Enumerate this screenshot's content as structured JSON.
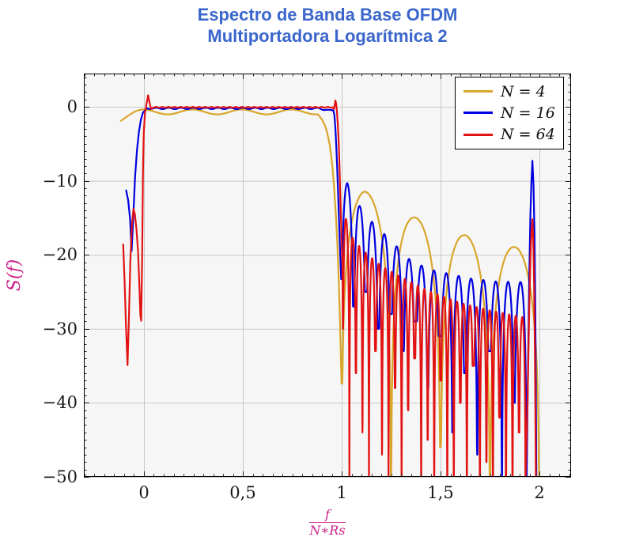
{
  "title": {
    "line1": "Espectro de Banda Base OFDM",
    "line2": "Multiportadora Logarítmica 2",
    "color": "#3A66CC"
  },
  "axes": {
    "x": {
      "label_numerator": "f",
      "label_denominator": "N∗Rs",
      "label_color": "#CC2288",
      "ticks": [
        "0",
        "0,5",
        "1",
        "1,5",
        "2"
      ],
      "tick_values": [
        0,
        0.5,
        1,
        1.5,
        2
      ],
      "range": [
        -0.304,
        2.16
      ],
      "minor_step": 0.05
    },
    "y": {
      "label": "S(f)",
      "label_color": "#CC2288",
      "ticks": [
        "0",
        "−10",
        "−20",
        "−30",
        "−40",
        "−50"
      ],
      "tick_values": [
        0,
        -10,
        -20,
        -30,
        -40,
        -50
      ],
      "range": [
        -50,
        4.49
      ],
      "minor_step": 1
    }
  },
  "legend": {
    "entries": [
      {
        "label": "N = 4",
        "color": "#D9A62B"
      },
      {
        "label": "N = 16",
        "color": "#0000E0"
      },
      {
        "label": "N = 64",
        "color": "#E31212"
      }
    ]
  },
  "chart_data": {
    "type": "line",
    "title": "Espectro de Banda Base OFDM Multiportadora Logarítmica 2",
    "xlabel": "f/(N∗Rs)",
    "ylabel": "S(f)",
    "xlim": [
      -0.304,
      2.16
    ],
    "ylim": [
      -50,
      4.49
    ],
    "grid": true,
    "legend_position": "top-right",
    "style": {
      "plot_bg": "#F6F6F6",
      "grid_color": "#C9C9C9",
      "frame_color": "#000000",
      "line_width": 2.2
    },
    "series": [
      {
        "name": "N = 4",
        "N": 4,
        "color": "#D9A62B",
        "description": "Flat passband 0 dB from x=0 to x=0.9 with ±0.35 dB ripple (period 0.25), steep roll-off, nulls at x=1.0,1.25,1.5,1.75,2.0, sidelobe peaks -11.4,-14.9,-17.3,-18.9 dB",
        "model": {
          "segments": [
            {
              "type": "flat",
              "x0": -0.116,
              "x1": 0.88,
              "step": 0.003,
              "base": -0.7,
              "amp": 0.33,
              "period": 0.25,
              "phase": -0.005,
              "quad_droop": {
                "x_ref": 0.0,
                "coef": 65
              }
            },
            {
              "type": "anchors",
              "step": 0.002,
              "points": [
                [
                  0.88,
                  -1.03
                ],
                [
                  0.9,
                  -1.7
                ],
                [
                  0.915,
                  -2.5
                ],
                [
                  0.925,
                  -3.3
                ],
                [
                  0.94,
                  -5.2
                ],
                [
                  0.952,
                  -7.8
                ],
                [
                  0.962,
                  -11
                ],
                [
                  0.971,
                  -14.8
                ],
                [
                  0.979,
                  -19
                ],
                [
                  0.986,
                  -24
                ],
                [
                  0.992,
                  -29.5
                ],
                [
                  0.997,
                  -35
                ],
                [
                  0.9995,
                  -37.4
                ]
              ]
            },
            {
              "type": "sidelobes",
              "z0": 1.0,
              "period": 0.25,
              "count": 4,
              "step": 0.0015,
              "envelope": [
                [
                  1.0,
                  -10.8
                ],
                [
                  1.115,
                  -11.4
                ],
                [
                  1.365,
                  -14.9
                ],
                [
                  1.615,
                  -17.3
                ],
                [
                  1.865,
                  -18.9
                ],
                [
                  2.0,
                  -19.5
                ]
              ],
              "floors": [
                -37.4,
                -52,
                -46,
                -52,
                -52
              ]
            }
          ]
        }
      },
      {
        "name": "N = 16",
        "N": 16,
        "color": "#0000E0",
        "description": "Flat passband 0 dB, left-edge null -19.5 dB at x=-0.0625, sidelobes period 0.0625 decaying -10.3 to -23.7 dB, narrow spike to -7.3 dB at x=1.9645",
        "model": {
          "segments": [
            {
              "type": "anchors",
              "step": 0.0015,
              "points": [
                [
                  -0.09,
                  -11.3
                ],
                [
                  -0.08,
                  -12.6
                ],
                [
                  -0.07,
                  -15.2
                ],
                [
                  -0.0625,
                  -19.5
                ],
                [
                  -0.055,
                  -15.5
                ],
                [
                  -0.045,
                  -9.5
                ],
                [
                  -0.035,
                  -5.8
                ],
                [
                  -0.025,
                  -3.3
                ],
                [
                  -0.015,
                  -1.7
                ],
                [
                  -0.005,
                  -0.8
                ],
                [
                  0.01,
                  -0.35
                ]
              ]
            },
            {
              "type": "flat",
              "x0": 0.01,
              "x1": 0.952,
              "step": 0.002,
              "base": -0.22,
              "amp": 0.09,
              "period": 0.0625,
              "phase": 0.0,
              "sag": {
                "x": 0.94,
                "w": 0.055,
                "amp": 0.3
              }
            },
            {
              "type": "anchors",
              "step": 0.0015,
              "points": [
                [
                  0.952,
                  -0.5
                ],
                [
                  0.958,
                  -0.45
                ],
                [
                  0.963,
                  -1.1
                ],
                [
                  0.968,
                  -2.8
                ],
                [
                  0.973,
                  -5.5
                ],
                [
                  0.978,
                  -8.8
                ],
                [
                  0.983,
                  -12.5
                ],
                [
                  0.988,
                  -16.5
                ],
                [
                  0.993,
                  -20.3
                ],
                [
                  0.9975,
                  -23.3
                ]
              ]
            },
            {
              "type": "sidelobes",
              "z0": 0.998,
              "period": 0.0625,
              "count": 15,
              "step": 0.001,
              "envelope": [
                [
                  0.998,
                  -9.7
                ],
                [
                  1.028,
                  -10.3
                ],
                [
                  1.088,
                  -13.3
                ],
                [
                  1.148,
                  -15.4
                ],
                [
                  1.216,
                  -17.2
                ],
                [
                  1.284,
                  -19.0
                ],
                [
                  1.35,
                  -20.8
                ],
                [
                  1.45,
                  -22.0
                ],
                [
                  1.55,
                  -22.6
                ],
                [
                  1.65,
                  -23.2
                ],
                [
                  1.78,
                  -23.6
                ],
                [
                  1.935,
                  -23.7
                ]
              ],
              "floors": [
                -23.3,
                -27,
                -25,
                -30,
                -28,
                -33,
                -29,
                -38,
                -31,
                -44,
                -36,
                -47,
                -33,
                -50,
                -40,
                -52
              ]
            },
            {
              "type": "anchors",
              "step": 0.0008,
              "points": [
                [
                  1.9355,
                  -50
                ],
                [
                  1.942,
                  -36
                ],
                [
                  1.948,
                  -24
                ],
                [
                  1.954,
                  -15
                ],
                [
                  1.959,
                  -10.5
                ],
                [
                  1.9645,
                  -7.3
                ],
                [
                  1.97,
                  -10.5
                ],
                [
                  1.975,
                  -17
                ],
                [
                  1.979,
                  -27
                ],
                [
                  1.982,
                  -38
                ],
                [
                  1.9845,
                  -50
                ]
              ]
            }
          ]
        }
      },
      {
        "name": "N = 64",
        "N": 64,
        "color": "#E31212",
        "description": "Flat passband 0 dB with overshoot +1.55 dB at x=0.022 and +0.85 dB at x=0.968, left tail nulls -34.9 dB at x=-0.083 and -28.9 dB at x=-0.014, dense deep sidelobes many below -50 dB, spike to -15.2 dB at x=1.9645",
        "model": {
          "segments": [
            {
              "type": "anchors",
              "step": 0.001,
              "points": [
                [
                  -0.105,
                  -18.6
                ],
                [
                  -0.098,
                  -23.5
                ],
                [
                  -0.091,
                  -29.5
                ],
                [
                  -0.083,
                  -34.9
                ],
                [
                  -0.076,
                  -28.5
                ],
                [
                  -0.069,
                  -21
                ],
                [
                  -0.061,
                  -16
                ],
                [
                  -0.053,
                  -13.8
                ],
                [
                  -0.046,
                  -14.5
                ],
                [
                  -0.038,
                  -16.5
                ],
                [
                  -0.03,
                  -19.5
                ],
                [
                  -0.024,
                  -23.5
                ],
                [
                  -0.018,
                  -28.2
                ],
                [
                  -0.014,
                  -28.9
                ],
                [
                  -0.009,
                  -20
                ],
                [
                  -0.005,
                  -9
                ],
                [
                  -0.001,
                  -3.6
                ],
                [
                  0.005,
                  -0.9
                ],
                [
                  0.013,
                  0.4
                ],
                [
                  0.021,
                  1.55
                ],
                [
                  0.028,
                  0.6
                ],
                [
                  0.036,
                  -0.3
                ],
                [
                  0.048,
                  -0.1
                ]
              ]
            },
            {
              "type": "flat",
              "x0": 0.048,
              "x1": 0.955,
              "step": 0.002,
              "base": -0.07,
              "amp": 0.05,
              "period": 0.031,
              "phase": 0.0
            },
            {
              "type": "anchors",
              "step": 0.001,
              "points": [
                [
                  0.955,
                  -0.12
                ],
                [
                  0.961,
                  -0.3
                ],
                [
                  0.9645,
                  0.2
                ],
                [
                  0.968,
                  0.85
                ],
                [
                  0.972,
                  0.45
                ],
                [
                  0.976,
                  -0.6
                ],
                [
                  0.981,
                  -2.6
                ],
                [
                  0.986,
                  -5.5
                ],
                [
                  0.99,
                  -9
                ],
                [
                  0.995,
                  -14
                ],
                [
                  1.0,
                  -18.5
                ],
                [
                  1.004,
                  -21.3
                ]
              ]
            },
            {
              "type": "sidelobes",
              "z0": 1.006,
              "period": 0.033,
              "count": 28,
              "step": 0.0007,
              "envelope": [
                [
                  1.006,
                  -13.8
                ],
                [
                  1.05,
                  -17.5
                ],
                [
                  1.1,
                  -19.2
                ],
                [
                  1.2,
                  -21.5
                ],
                [
                  1.3,
                  -23.0
                ],
                [
                  1.45,
                  -25.0
                ],
                [
                  1.6,
                  -26.5
                ],
                [
                  1.75,
                  -27.5
                ],
                [
                  1.93,
                  -28.5
                ]
              ],
              "floors": [
                -30,
                -52,
                -36,
                -44,
                -52,
                -33,
                -47,
                -52,
                -38,
                -52,
                -41,
                -34,
                -52,
                -45,
                -52,
                -37,
                -52,
                -52,
                -40,
                -52,
                -35,
                -52,
                -48,
                -52,
                -42,
                -52,
                -52,
                -44,
                -52
              ]
            },
            {
              "type": "anchors",
              "step": 0.0008,
              "points": [
                [
                  1.93,
                  -50
                ],
                [
                  1.94,
                  -40
                ],
                [
                  1.948,
                  -28
                ],
                [
                  1.955,
                  -20
                ],
                [
                  1.96,
                  -16.8
                ],
                [
                  1.9645,
                  -15.2
                ],
                [
                  1.969,
                  -18
                ],
                [
                  1.973,
                  -24
                ],
                [
                  1.977,
                  -33
                ],
                [
                  1.98,
                  -43
                ],
                [
                  1.982,
                  -50
                ]
              ]
            }
          ]
        }
      }
    ]
  }
}
